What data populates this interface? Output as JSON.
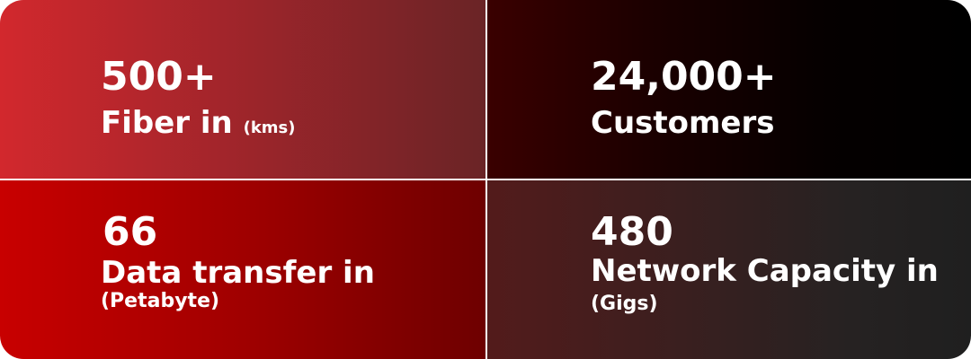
{
  "stats": [
    {
      "value": "500+",
      "label": "Fiber in",
      "unit": "(kms)"
    },
    {
      "value": "24,000+",
      "label": "Customers",
      "unit": ""
    },
    {
      "value": "66",
      "label": "Data transfer in",
      "unit": "(Petabyte)"
    },
    {
      "value": "480",
      "label": "Network Capacity in",
      "unit": "(Gigs)"
    }
  ],
  "colors": {
    "fiber_start": "#d2282d",
    "customers_end": "#000000",
    "data_start": "#c80000",
    "network_end": "#1f1f1f",
    "divider": "#ffffff",
    "text": "#ffffff"
  }
}
